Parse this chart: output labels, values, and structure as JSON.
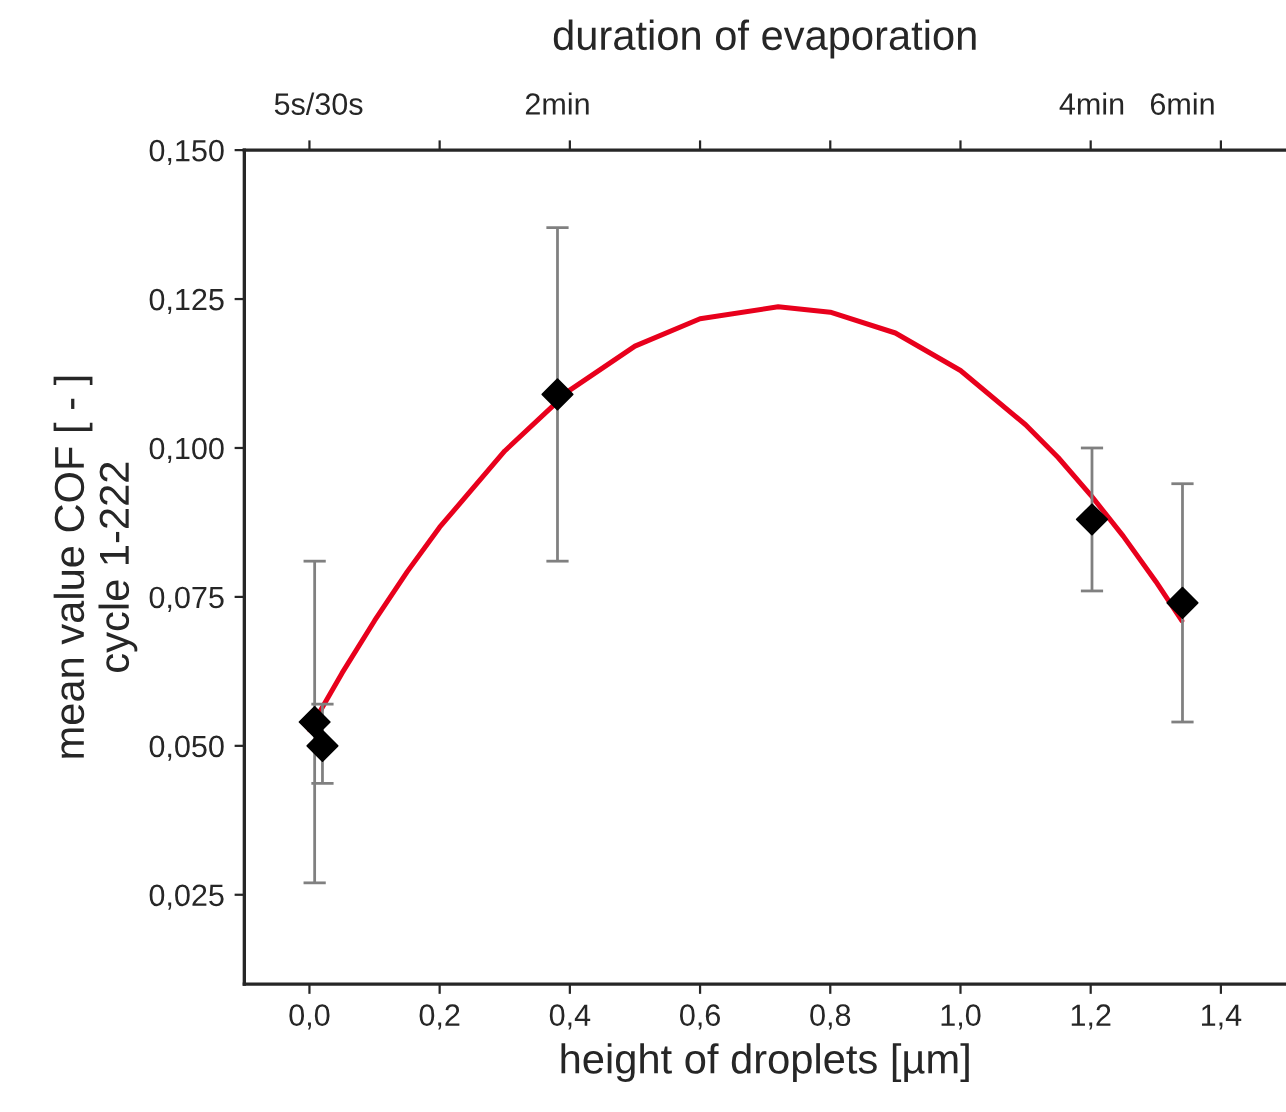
{
  "chart_data": {
    "type": "scatter",
    "xlabel": "height of droplets [µm]",
    "ylabel": "mean value COF [ - ]\ncycle 1-222",
    "x2label": "duration of evaporation",
    "xlim": [
      -0.1,
      1.5
    ],
    "ylim": [
      0.01,
      0.15
    ],
    "xticks": [
      {
        "value": 0.0,
        "label": "0,0"
      },
      {
        "value": 0.2,
        "label": "0,2"
      },
      {
        "value": 0.4,
        "label": "0,4"
      },
      {
        "value": 0.6,
        "label": "0,6"
      },
      {
        "value": 0.8,
        "label": "0,8"
      },
      {
        "value": 1.0,
        "label": "1,0"
      },
      {
        "value": 1.2,
        "label": "1,2"
      },
      {
        "value": 1.4,
        "label": "1,4"
      }
    ],
    "yticks": [
      {
        "value": 0.025,
        "label": "0,025"
      },
      {
        "value": 0.05,
        "label": "0,050"
      },
      {
        "value": 0.075,
        "label": "0,075"
      },
      {
        "value": 0.1,
        "label": "0,100"
      },
      {
        "value": 0.125,
        "label": "0,125"
      },
      {
        "value": 0.15,
        "label": "0,150"
      }
    ],
    "annotations": [
      "5s/30s",
      "2min",
      "4min",
      "6min"
    ],
    "grid": false,
    "legend": false,
    "series": [
      {
        "type": "line",
        "color": "#e8001c",
        "line_style": "solid",
        "marker": "none",
        "x": [
          0.0,
          0.05,
          0.1,
          0.15,
          0.2,
          0.3,
          0.4,
          0.5,
          0.6,
          0.72,
          0.8,
          0.9,
          1.0,
          1.1,
          1.15,
          1.2,
          1.25,
          1.3,
          1.34
        ],
        "values": [
          0.0527,
          0.0622,
          0.071,
          0.0792,
          0.0867,
          0.0995,
          0.1097,
          0.1171,
          0.1217,
          0.1237,
          0.1228,
          0.1193,
          0.113,
          0.1039,
          0.0984,
          0.0921,
          0.0852,
          0.0776,
          0.071
        ]
      },
      {
        "color": "#000000",
        "marker": "diamond",
        "x": [
          0.008,
          0.02,
          0.381,
          1.202,
          1.341
        ],
        "values": [
          0.054,
          0.05,
          0.109,
          0.088,
          0.074
        ],
        "errors": [
          [
            0.027,
            0.081
          ],
          [
            0.0437,
            0.057
          ],
          [
            0.081,
            0.137
          ],
          [
            0.076,
            0.1
          ],
          [
            0.054,
            0.094
          ]
        ]
      }
    ]
  }
}
